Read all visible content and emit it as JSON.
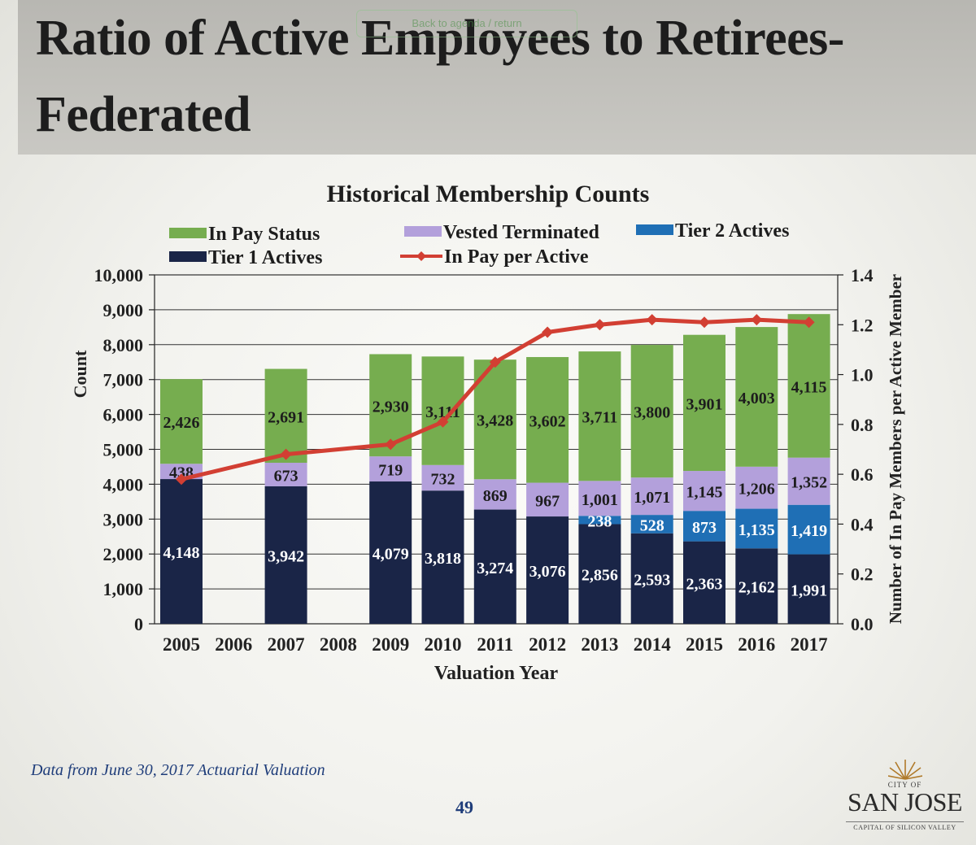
{
  "slide": {
    "title": "Ratio of Active Employees to Retirees- Federated",
    "link_overlay": "Back to agenda / return",
    "footnote": "Data from June 30, 2017 Actuarial Valuation",
    "page_number": "49",
    "logo": {
      "city_of": "CITY OF",
      "name": "SAN JOSE",
      "tagline": "CAPITAL OF SILICON VALLEY"
    }
  },
  "colors": {
    "in_pay": "#76ad4f",
    "vested": "#b3a0db",
    "tier2": "#1f6fb5",
    "tier1": "#1a2547",
    "line": "#d23f33"
  },
  "chart_data": {
    "type": "bar",
    "stacked": true,
    "title": "Historical Membership Counts",
    "xlabel": "Valuation Year",
    "ylabel": "Count",
    "y2label": "Number of In Pay Members per Active Member",
    "ylim": [
      0,
      10000
    ],
    "y2lim": [
      0,
      1.4
    ],
    "yticks": [
      "0",
      "1,000",
      "2,000",
      "3,000",
      "4,000",
      "5,000",
      "6,000",
      "7,000",
      "8,000",
      "9,000",
      "10,000"
    ],
    "y2ticks": [
      "0.0",
      "0.2",
      "0.4",
      "0.6",
      "0.8",
      "1.0",
      "1.2",
      "1.4"
    ],
    "grid": true,
    "legend": [
      "In Pay Status",
      "Vested Terminated",
      "Tier 2 Actives",
      "Tier 1 Actives",
      "In Pay per Active"
    ],
    "categories": [
      "2005",
      "2006",
      "2007",
      "2008",
      "2009",
      "2010",
      "2011",
      "2012",
      "2013",
      "2014",
      "2015",
      "2016",
      "2017"
    ],
    "series": [
      {
        "name": "Tier 1 Actives",
        "key": "tier1",
        "values": [
          4148,
          null,
          3942,
          null,
          4079,
          3818,
          3274,
          3076,
          2856,
          2593,
          2363,
          2162,
          1991
        ],
        "labels": [
          "4,148",
          "",
          "3,942",
          "",
          "4,079",
          "3,818",
          "3,274",
          "3,076",
          "2,856",
          "2,593",
          "2,363",
          "2,162",
          "1,991"
        ]
      },
      {
        "name": "Tier 2 Actives",
        "key": "tier2",
        "values": [
          0,
          null,
          0,
          null,
          0,
          0,
          0,
          0,
          238,
          528,
          873,
          1135,
          1419
        ],
        "labels": [
          "",
          "",
          "",
          "",
          "",
          "",
          "",
          "",
          "238",
          "528",
          "873",
          "1,135",
          "1,419"
        ]
      },
      {
        "name": "Vested Terminated",
        "key": "vested",
        "values": [
          438,
          null,
          673,
          null,
          719,
          732,
          869,
          967,
          1001,
          1071,
          1145,
          1206,
          1352
        ],
        "labels": [
          "438",
          "",
          "673",
          "",
          "719",
          "732",
          "869",
          "967",
          "1,001",
          "1,071",
          "1,145",
          "1,206",
          "1,352"
        ]
      },
      {
        "name": "In Pay Status",
        "key": "in_pay",
        "values": [
          2426,
          null,
          2691,
          null,
          2930,
          3111,
          3428,
          3602,
          3711,
          3800,
          3901,
          4003,
          4115
        ],
        "labels": [
          "2,426",
          "",
          "2,691",
          "",
          "2,930",
          "3,111",
          "3,428",
          "3,602",
          "3,711",
          "3,800",
          "3,901",
          "4,003",
          "4,115"
        ]
      }
    ],
    "line_series": {
      "name": "In Pay per Active",
      "axis": "y2",
      "values": [
        0.58,
        null,
        0.68,
        null,
        0.72,
        0.81,
        1.05,
        1.17,
        1.2,
        1.22,
        1.21,
        1.22,
        1.21
      ]
    }
  }
}
